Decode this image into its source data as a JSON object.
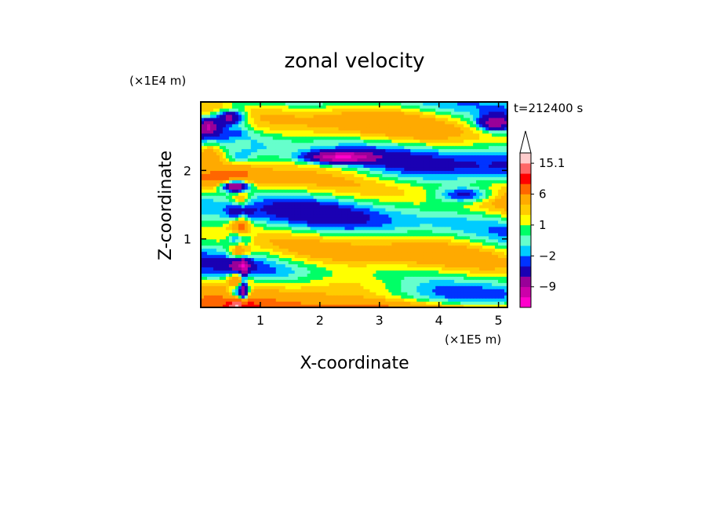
{
  "chart_data": {
    "type": "heatmap",
    "title": "zonal velocity",
    "xlabel": "X-coordinate",
    "ylabel": "Z-coordinate",
    "x_unit": "(×1E5 m)",
    "y_unit": "(×1E4 m)",
    "time_label": "t=212400 s",
    "xlim": [
      0,
      5.15
    ],
    "ylim": [
      0,
      3
    ],
    "x_ticks": [
      1,
      2,
      3,
      4,
      5
    ],
    "y_ticks": [
      1,
      2
    ],
    "colorbar": {
      "bounds": [
        -15,
        -12,
        -9,
        -6,
        -3,
        -2,
        -1,
        0,
        1,
        2,
        3,
        6,
        9,
        12,
        15.1
      ],
      "colors": [
        "#ff00cc",
        "#cc00aa",
        "#990099",
        "#1a00b3",
        "#0033ff",
        "#00ccff",
        "#66ffcc",
        "#00ff66",
        "#ffff00",
        "#ffcc00",
        "#ffaa00",
        "#ff6600",
        "#ff0000",
        "#ff6666",
        "#ffcccc"
      ],
      "labels": [
        "15.1",
        "6",
        "1",
        "−2",
        "−9"
      ],
      "label_values": [
        15.1,
        6,
        1,
        -2,
        -9
      ],
      "extend": "max"
    }
  }
}
